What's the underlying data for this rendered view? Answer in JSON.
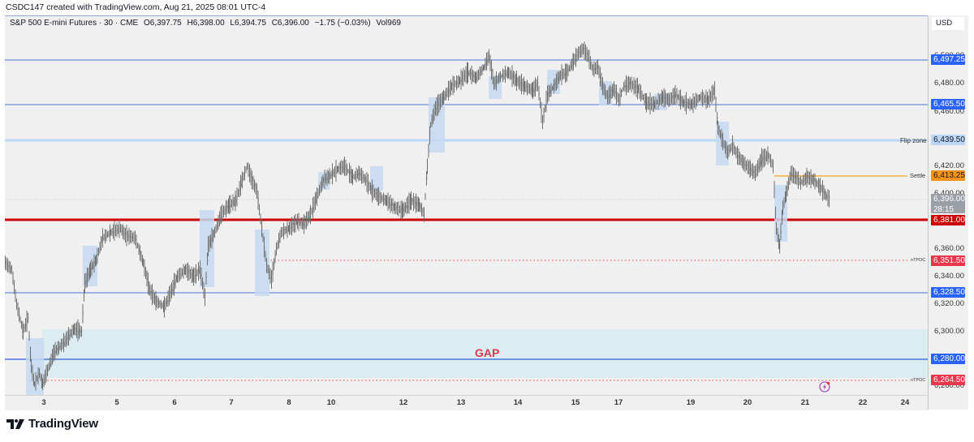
{
  "header": {
    "credit": "CSDC147 created with TradingView.com, Aug 21, 2025 08:01 UTC-4"
  },
  "legend": {
    "symbol": "S&P 500 E-mini Futures · 30 · CME",
    "open": "O6,397.75",
    "high": "H6,398.00",
    "low": "L6,394.75",
    "close": "C6,396.00",
    "change": "−1.75 (−0.03%)",
    "volume": "Vol969"
  },
  "price_axis": {
    "currency": "USD",
    "ticks": [
      "6,500.00",
      "6,480.00",
      "6,460.00",
      "6,420.00",
      "6,400.00",
      "6,360.00",
      "6,340.00",
      "6,320.00",
      "6,300.00",
      "6,260.00"
    ],
    "labels": {
      "l6497": "6,497.25",
      "l6465": "6,465.50",
      "flip": "6,439.50",
      "settle": "6,413.25",
      "last": "6,396.00",
      "countdown": "28:15",
      "red": "6,381.00",
      "ntpoc1": "6,351.50",
      "l6328": "6,328.50",
      "l6280": "6,280.00",
      "ntpoc2": "6,264.50"
    }
  },
  "annotations": {
    "flip_zone": "Flip zone",
    "settle": "Settle",
    "ntpoc": "nTPOC",
    "gap": "GAP"
  },
  "time_axis": {
    "labels": [
      "3",
      "5",
      "6",
      "7",
      "8",
      "10",
      "12",
      "13",
      "14",
      "15",
      "17",
      "19",
      "20",
      "21",
      "22",
      "24"
    ]
  },
  "footer": {
    "brand": "TradingView"
  },
  "colors": {
    "blue_line": "#4a76d8",
    "flip_zone": "#bcd6f5",
    "settle": "#f7a21b",
    "red_level": "#cc0000",
    "ntpoc": "#e8364a",
    "gap_fill": "#dcedf2",
    "candle": "#707070",
    "box_fill": "#c6d9f1"
  },
  "chart_data": {
    "type": "candlestick",
    "title": "S&P 500 E-mini Futures · 30 · CME",
    "ohlc_last": {
      "open": 6397.75,
      "high": 6398.0,
      "low": 6394.75,
      "close": 6396.0,
      "change": -1.75,
      "change_pct": -0.03,
      "volume": 969
    },
    "x_ticks": [
      "3",
      "5",
      "6",
      "7",
      "8",
      "10",
      "12",
      "13",
      "14",
      "15",
      "17",
      "19",
      "20",
      "21",
      "22",
      "24"
    ],
    "ylim": [
      6255,
      6525
    ],
    "y_ticks": [
      6260,
      6300,
      6320,
      6340,
      6360,
      6400,
      6420,
      6460,
      6480,
      6500
    ],
    "horizontal_levels": [
      {
        "price": 6497.25,
        "color": "blue",
        "label": ""
      },
      {
        "price": 6465.5,
        "color": "blue",
        "label": ""
      },
      {
        "price": 6439.5,
        "color": "light-blue",
        "label": "Flip zone"
      },
      {
        "price": 6413.25,
        "color": "orange",
        "label": "Settle"
      },
      {
        "price": 6381.0,
        "color": "red",
        "label": ""
      },
      {
        "price": 6351.5,
        "color": "red-dotted",
        "label": "nTPOC"
      },
      {
        "price": 6328.5,
        "color": "blue",
        "label": ""
      },
      {
        "price": 6280.0,
        "color": "blue",
        "label": ""
      },
      {
        "price": 6264.5,
        "color": "red-dotted",
        "label": "nTPOC"
      }
    ],
    "zones": [
      {
        "name": "GAP",
        "from": 6265,
        "to": 6300
      }
    ],
    "approx_price_path": [
      {
        "x": "start",
        "price": 6355
      },
      {
        "x": "3",
        "price": 6265
      },
      {
        "x": "4",
        "price": 6300
      },
      {
        "x": "5",
        "price": 6375
      },
      {
        "x": "6",
        "price": 6315
      },
      {
        "x": "7",
        "price": 6425
      },
      {
        "x": "8",
        "price": 6340
      },
      {
        "x": "10",
        "price": 6420
      },
      {
        "x": "12",
        "price": 6395
      },
      {
        "x": "12.5",
        "price": 6465
      },
      {
        "x": "13",
        "price": 6490
      },
      {
        "x": "14",
        "price": 6480
      },
      {
        "x": "15",
        "price": 6505
      },
      {
        "x": "17",
        "price": 6470
      },
      {
        "x": "19",
        "price": 6465
      },
      {
        "x": "19.5",
        "price": 6430
      },
      {
        "x": "20",
        "price": 6425
      },
      {
        "x": "20.5",
        "price": 6365
      },
      {
        "x": "21",
        "price": 6415
      },
      {
        "x": "last",
        "price": 6396
      }
    ]
  }
}
